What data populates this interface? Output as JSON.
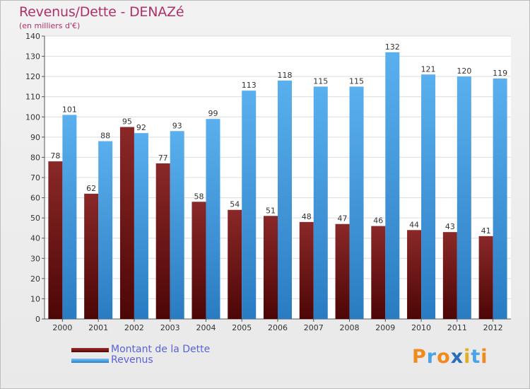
{
  "title": "Revenus/Dette - DENAZé",
  "subtitle": "(en milliers d'€)",
  "chart_data": {
    "type": "bar",
    "categories": [
      "2000",
      "2001",
      "2002",
      "2003",
      "2004",
      "2005",
      "2006",
      "2007",
      "2008",
      "2009",
      "2010",
      "2011",
      "2012"
    ],
    "series": [
      {
        "name": "Montant de la Dette",
        "values": [
          78,
          62,
          95,
          77,
          58,
          54,
          51,
          48,
          47,
          46,
          44,
          43,
          41
        ],
        "color": "#7a1a1a"
      },
      {
        "name": "Revenus",
        "values": [
          101,
          88,
          92,
          93,
          99,
          113,
          118,
          115,
          115,
          132,
          121,
          120,
          119
        ],
        "color": "#4aa3e6"
      }
    ],
    "ylim": [
      0,
      140
    ],
    "yticks": [
      0,
      10,
      20,
      30,
      40,
      50,
      60,
      70,
      80,
      90,
      100,
      110,
      120,
      130,
      140
    ],
    "grid": true,
    "legend": "bottom-left"
  },
  "logo": {
    "text": "Proxiti",
    "letter_colors": [
      "#f08a1c",
      "#4aa3e6",
      "#f08a1c",
      "#2a6fb5",
      "#e0b020",
      "#4aa3e6",
      "#f08a1c"
    ]
  }
}
